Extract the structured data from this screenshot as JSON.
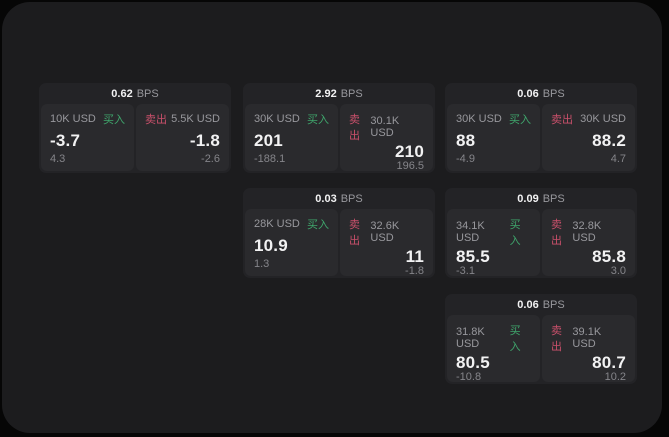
{
  "colors": {
    "page_bg": "#060606",
    "panel_bg": "#1c1c1e",
    "card_bg": "#232326",
    "subcard_bg": "#2a2a2d",
    "text_primary": "#f2f2f3",
    "text_secondary": "#98989d",
    "buy_green": "#3fa56c",
    "sell_red": "#c9506b"
  },
  "labels": {
    "bps_unit": "BPS",
    "buy": "买入",
    "sell": "卖出"
  },
  "cards": [
    {
      "bps": "0.62",
      "row": 1,
      "col": 1,
      "buy": {
        "size": "10K USD",
        "price": "-3.7",
        "delta": "4.3"
      },
      "sell": {
        "size": "5.5K USD",
        "price": "-1.8",
        "delta": "-2.6"
      }
    },
    {
      "bps": "2.92",
      "row": 1,
      "col": 2,
      "buy": {
        "size": "30K USD",
        "price": "201",
        "delta": "-188.1"
      },
      "sell": {
        "size": "30.1K USD",
        "price": "210",
        "delta": "196.5"
      }
    },
    {
      "bps": "0.06",
      "row": 1,
      "col": 3,
      "buy": {
        "size": "30K USD",
        "price": "88",
        "delta": "-4.9"
      },
      "sell": {
        "size": "30K USD",
        "price": "88.2",
        "delta": "4.7"
      }
    },
    {
      "bps": "0.03",
      "row": 2,
      "col": 2,
      "buy": {
        "size": "28K USD",
        "price": "10.9",
        "delta": "1.3"
      },
      "sell": {
        "size": "32.6K USD",
        "price": "11",
        "delta": "-1.8"
      }
    },
    {
      "bps": "0.09",
      "row": 2,
      "col": 3,
      "buy": {
        "size": "34.1K USD",
        "price": "85.5",
        "delta": "-3.1"
      },
      "sell": {
        "size": "32.8K USD",
        "price": "85.8",
        "delta": "3.0"
      }
    },
    {
      "bps": "0.06",
      "row": 3,
      "col": 3,
      "buy": {
        "size": "31.8K USD",
        "price": "80.5",
        "delta": "-10.8"
      },
      "sell": {
        "size": "39.1K USD",
        "price": "80.7",
        "delta": "10.2"
      }
    }
  ]
}
